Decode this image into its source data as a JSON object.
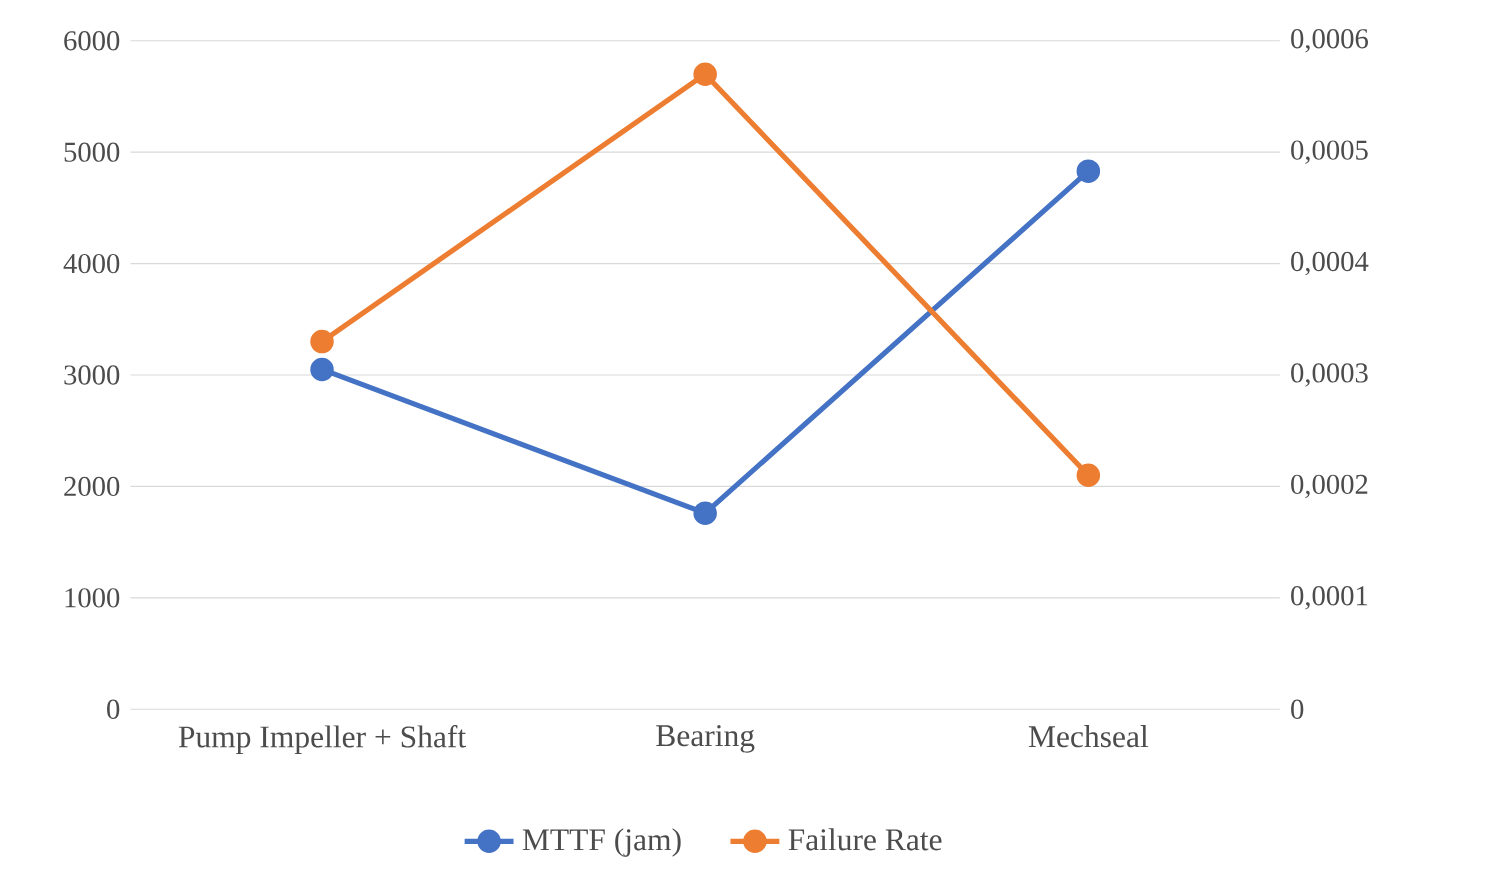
{
  "chart_data": {
    "type": "line",
    "categories": [
      "Pump Impeller + Shaft",
      "Bearing",
      "Mechseal"
    ],
    "series": [
      {
        "name": "MTTF (jam)",
        "color": "#4472c4",
        "values": [
          3050,
          1760,
          4830
        ]
      },
      {
        "name": "Failure Rate",
        "color": "#ed7d31",
        "values": [
          0.00033,
          0.00057,
          0.00021
        ],
        "axis": "y2"
      }
    ],
    "ylim": [
      0,
      6000
    ],
    "yticks": [
      0,
      1000,
      2000,
      3000,
      4000,
      5000,
      6000
    ],
    "y2lim": [
      0,
      0.0006
    ],
    "y2ticks": [
      0,
      {
        "value": 0.0001,
        "label": "0,0001"
      },
      {
        "value": 0.0002,
        "label": "0,0002"
      },
      {
        "value": 0.0003,
        "label": "0,0003"
      },
      {
        "value": 0.0004,
        "label": "0,0004"
      },
      {
        "value": 0.0005,
        "label": "0,0005"
      },
      {
        "value": 0.0006,
        "label": "0,0006"
      }
    ],
    "grid": "y",
    "legend": "bottom",
    "marker": "circle",
    "line_style": "solid"
  }
}
